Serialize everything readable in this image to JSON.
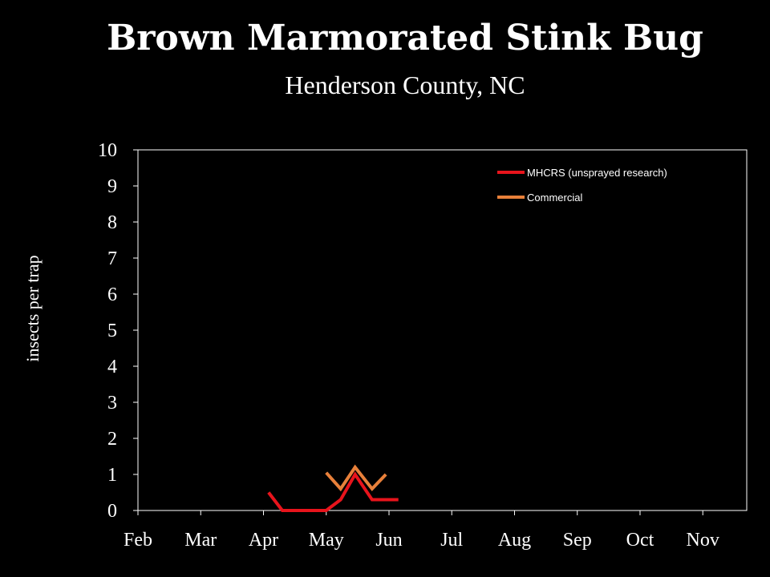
{
  "chart_data": {
    "type": "line",
    "title": "Brown Marmorated Stink Bug",
    "subtitle": "Henderson County, NC",
    "ylabel": "insects per trap",
    "xlabel": "",
    "ylim": [
      0,
      10
    ],
    "y_ticks": [
      "0",
      "1",
      "2",
      "3",
      "4",
      "5",
      "6",
      "7",
      "8",
      "9",
      "10"
    ],
    "x_ticks": [
      "Feb",
      "Mar",
      "Apr",
      "May",
      "Jun",
      "Jul",
      "Aug",
      "Sep",
      "Oct",
      "Nov"
    ],
    "x_domain": [
      0,
      9.7
    ],
    "grid": false,
    "legend_placement": "top-right",
    "series": [
      {
        "name": "MHCRS (unsprayed research)",
        "color": "#e8141c",
        "x": [
          2.08,
          2.3,
          3.0,
          3.23,
          3.46,
          3.73,
          4.15
        ],
        "y": [
          0.5,
          0.0,
          0.0,
          0.3,
          1.0,
          0.3,
          0.3
        ]
      },
      {
        "name": "Commercial",
        "color": "#e8803a",
        "x": [
          3.0,
          3.23,
          3.46,
          3.73,
          3.95
        ],
        "y": [
          1.05,
          0.6,
          1.2,
          0.6,
          1.0
        ]
      }
    ]
  }
}
